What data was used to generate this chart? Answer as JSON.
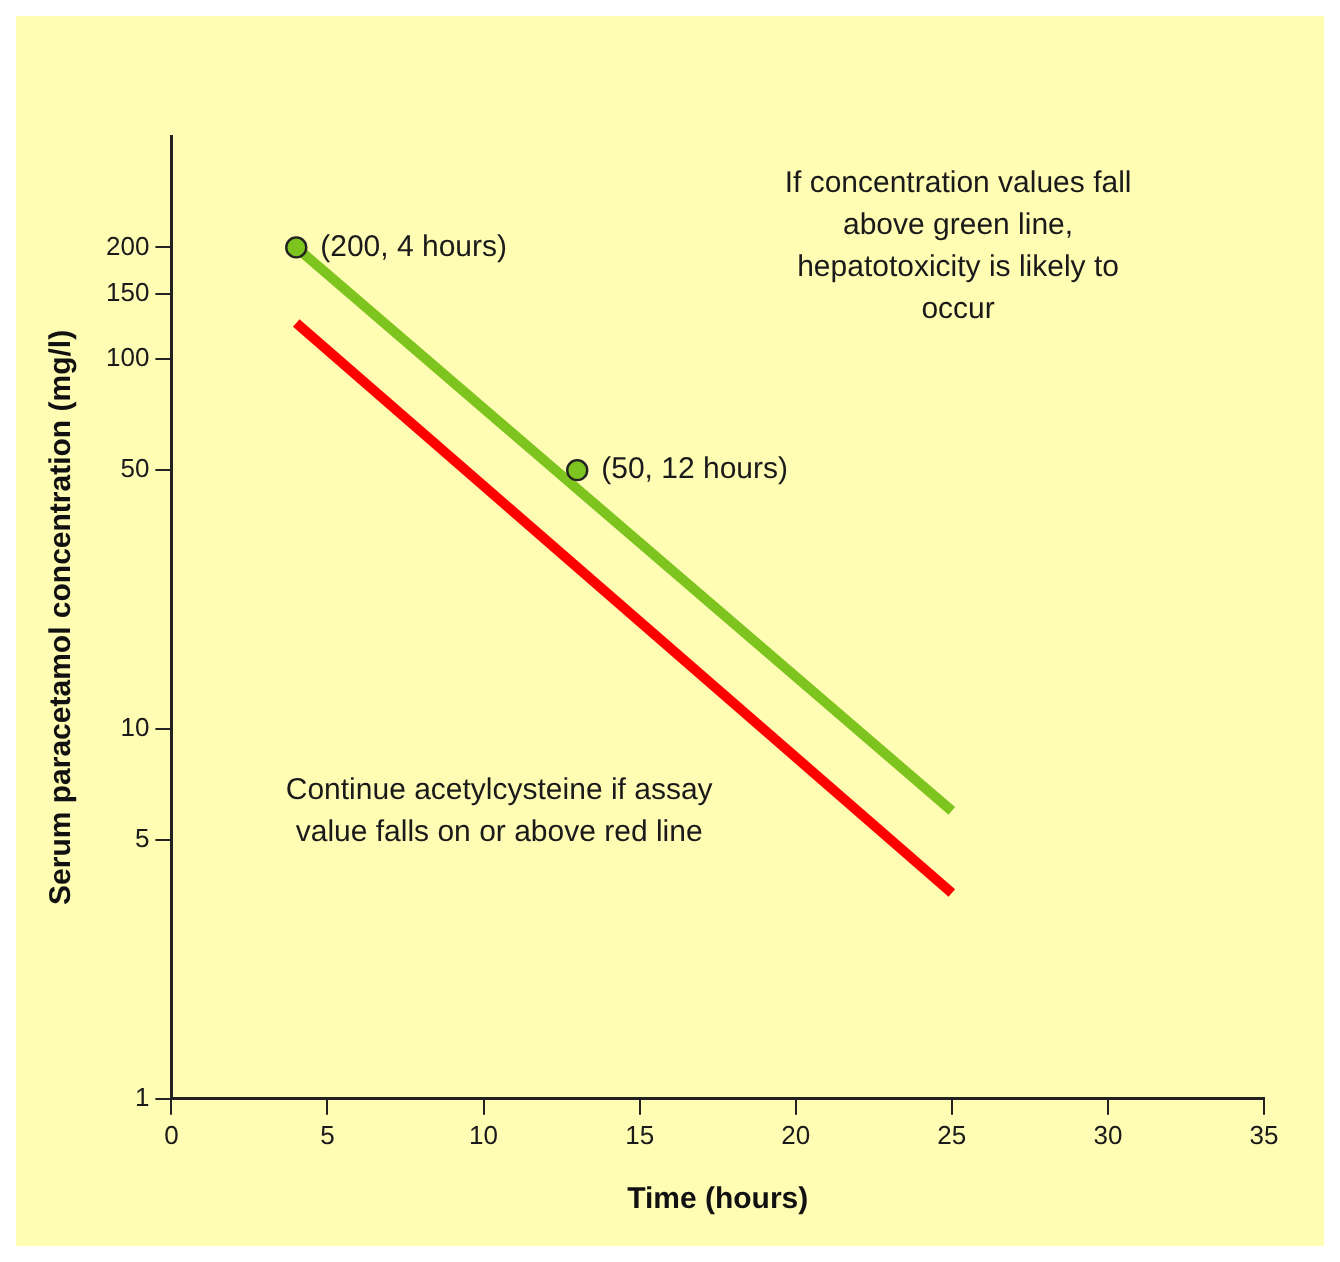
{
  "chart_data": {
    "type": "line",
    "xlabel": "Time (hours)",
    "ylabel": "Serum paracetamol concentration (mg/l)",
    "series": [
      {
        "color": "#7dc41e",
        "x": [
          4,
          25
        ],
        "values": [
          200,
          6
        ],
        "marker": "none"
      },
      {
        "color": "#ff0000",
        "x": [
          4,
          25
        ],
        "values": [
          125,
          3.6
        ],
        "marker": "none"
      },
      {
        "type": "scatter",
        "color": "#7dc41e",
        "x": [
          4,
          13
        ],
        "values": [
          200,
          50
        ],
        "marker": "circle"
      }
    ],
    "xlim": [
      0,
      35
    ],
    "xticks": [
      0,
      5,
      10,
      15,
      20,
      25,
      30,
      35
    ],
    "ylim": [
      1,
      400
    ],
    "yticks": [
      1,
      5,
      10,
      50,
      100,
      150,
      200
    ],
    "log": "y",
    "grid": false,
    "legend": false,
    "annotations": [
      {
        "text": "(200, 4 hours)",
        "x": 4,
        "y": 200
      },
      {
        "text": "(50, 12 hours)",
        "x": 13,
        "y": 50
      },
      "If concentration values fall above green line, hepatotoxicity is likely to occur",
      "Continue acetylcysteine if assay value falls on or above red line"
    ]
  }
}
